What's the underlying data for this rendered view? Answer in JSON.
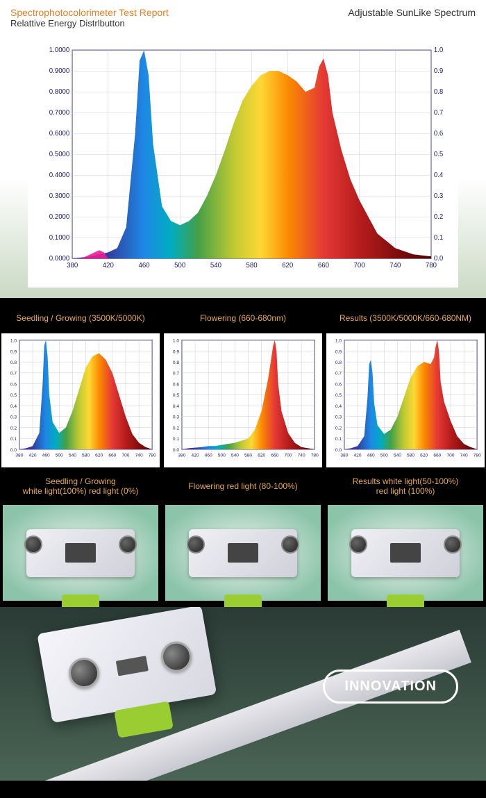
{
  "section1": {
    "report_title": "Spectrophotocolorimeter Test Report",
    "subtitle": "Relattive Energy Distrlbutton",
    "right_label": "Adjustable SunLike Spectrum"
  },
  "main_chart": {
    "type": "area-spectrum",
    "xlim": [
      380,
      780
    ],
    "ylim_left": [
      0,
      1.0
    ],
    "ylim_right": [
      0,
      1.0
    ],
    "xtick_step": 40,
    "ytick_left": [
      0.0,
      0.1,
      0.2,
      0.3,
      0.4,
      0.5,
      0.6,
      0.7,
      0.8,
      0.9,
      1.0
    ],
    "ytick_right": [
      0.0,
      0.1,
      0.2,
      0.3,
      0.4,
      0.5,
      0.6,
      0.7,
      0.8,
      0.9,
      1.0
    ],
    "ytick_left_decimals": 4,
    "ytick_right_decimals": 1,
    "axis_color": "#1a1a6a",
    "grid_color": "#c8c8e8",
    "axis_fontsize": 10,
    "background_color": "#ffffff",
    "curve": {
      "wavelengths": [
        380,
        400,
        410,
        420,
        430,
        440,
        450,
        455,
        460,
        465,
        470,
        480,
        490,
        500,
        510,
        520,
        530,
        540,
        550,
        560,
        570,
        580,
        590,
        600,
        610,
        620,
        630,
        640,
        650,
        655,
        660,
        665,
        670,
        680,
        690,
        700,
        720,
        740,
        760,
        780
      ],
      "values": [
        0.0,
        0.01,
        0.02,
        0.03,
        0.05,
        0.15,
        0.6,
        0.95,
        1.0,
        0.88,
        0.55,
        0.25,
        0.18,
        0.16,
        0.18,
        0.22,
        0.3,
        0.4,
        0.52,
        0.65,
        0.76,
        0.83,
        0.88,
        0.9,
        0.9,
        0.88,
        0.85,
        0.8,
        0.82,
        0.92,
        0.96,
        0.88,
        0.7,
        0.52,
        0.38,
        0.28,
        0.12,
        0.05,
        0.02,
        0.01
      ]
    },
    "pink_bump": {
      "wavelengths": [
        390,
        400,
        410,
        415,
        420
      ],
      "values": [
        0.0,
        0.02,
        0.04,
        0.03,
        0.0
      ],
      "color": "#e91e95"
    },
    "spectrum_stops": [
      {
        "wl": 380,
        "c": "#6a1b9a"
      },
      {
        "wl": 420,
        "c": "#303f9f"
      },
      {
        "wl": 460,
        "c": "#1e88e5"
      },
      {
        "wl": 490,
        "c": "#00acc1"
      },
      {
        "wl": 520,
        "c": "#43a047"
      },
      {
        "wl": 560,
        "c": "#c0ca33"
      },
      {
        "wl": 590,
        "c": "#fdd835"
      },
      {
        "wl": 620,
        "c": "#fb8c00"
      },
      {
        "wl": 660,
        "c": "#e53935"
      },
      {
        "wl": 700,
        "c": "#b71c1c"
      },
      {
        "wl": 780,
        "c": "#4e0000"
      }
    ]
  },
  "mini": {
    "common": {
      "xlim": [
        380,
        780
      ],
      "ylim": [
        0,
        1.0
      ],
      "xtick_step": 40,
      "yticks": [
        0.0,
        0.1,
        0.2,
        0.3,
        0.4,
        0.5,
        0.6,
        0.7,
        0.8,
        0.9,
        1.0
      ],
      "grid_color": "#c8c8d8",
      "axis_color": "#1a1a6a",
      "axis_fontsize": 7,
      "background_color": "#ffffff"
    },
    "panels": [
      {
        "title": "Seedling / Growing (3500K/5000K)",
        "sub_line1": "Seedling / Growing",
        "sub_line2": "white light(100%) red light  (0%)",
        "wavelengths": [
          380,
          400,
          420,
          440,
          450,
          455,
          460,
          465,
          470,
          480,
          500,
          520,
          540,
          560,
          580,
          600,
          620,
          640,
          660,
          680,
          700,
          720,
          740,
          760,
          780
        ],
        "values": [
          0.0,
          0.01,
          0.03,
          0.15,
          0.6,
          0.95,
          1.0,
          0.85,
          0.5,
          0.25,
          0.15,
          0.2,
          0.35,
          0.55,
          0.75,
          0.85,
          0.88,
          0.82,
          0.7,
          0.5,
          0.3,
          0.14,
          0.06,
          0.02,
          0.0
        ]
      },
      {
        "title": "Flowering (660-680nm)",
        "sub_line1": "Flowering red light   (80-100%)",
        "sub_line2": "",
        "wavelengths": [
          380,
          400,
          440,
          460,
          480,
          500,
          540,
          580,
          600,
          620,
          640,
          650,
          655,
          660,
          665,
          670,
          680,
          700,
          720,
          740,
          760,
          780
        ],
        "values": [
          0.0,
          0.01,
          0.02,
          0.03,
          0.03,
          0.04,
          0.06,
          0.1,
          0.18,
          0.35,
          0.65,
          0.85,
          0.95,
          1.0,
          0.9,
          0.6,
          0.35,
          0.15,
          0.06,
          0.02,
          0.01,
          0.0
        ]
      },
      {
        "title": "Results (3500K/5000K/660-680NM)",
        "sub_line1": "Results  white light(50-100%)",
        "sub_line2": "red light  (100%)",
        "wavelengths": [
          380,
          400,
          420,
          440,
          450,
          455,
          460,
          465,
          470,
          480,
          500,
          520,
          540,
          560,
          580,
          600,
          620,
          640,
          650,
          655,
          660,
          665,
          670,
          680,
          700,
          720,
          740,
          760,
          780
        ],
        "values": [
          0.0,
          0.01,
          0.03,
          0.12,
          0.48,
          0.78,
          0.82,
          0.7,
          0.42,
          0.22,
          0.14,
          0.18,
          0.3,
          0.48,
          0.66,
          0.76,
          0.8,
          0.78,
          0.84,
          0.94,
          1.0,
          0.9,
          0.62,
          0.44,
          0.26,
          0.12,
          0.05,
          0.02,
          0.0
        ]
      }
    ]
  },
  "section3": {
    "badge_text": "INNOVATION"
  },
  "colors": {
    "title_orange": "#e67e22",
    "mini_title": "#e8a94a",
    "black_bg": "#000000",
    "lime_clamp": "#9acd32",
    "badge_border": "#ffffff"
  }
}
